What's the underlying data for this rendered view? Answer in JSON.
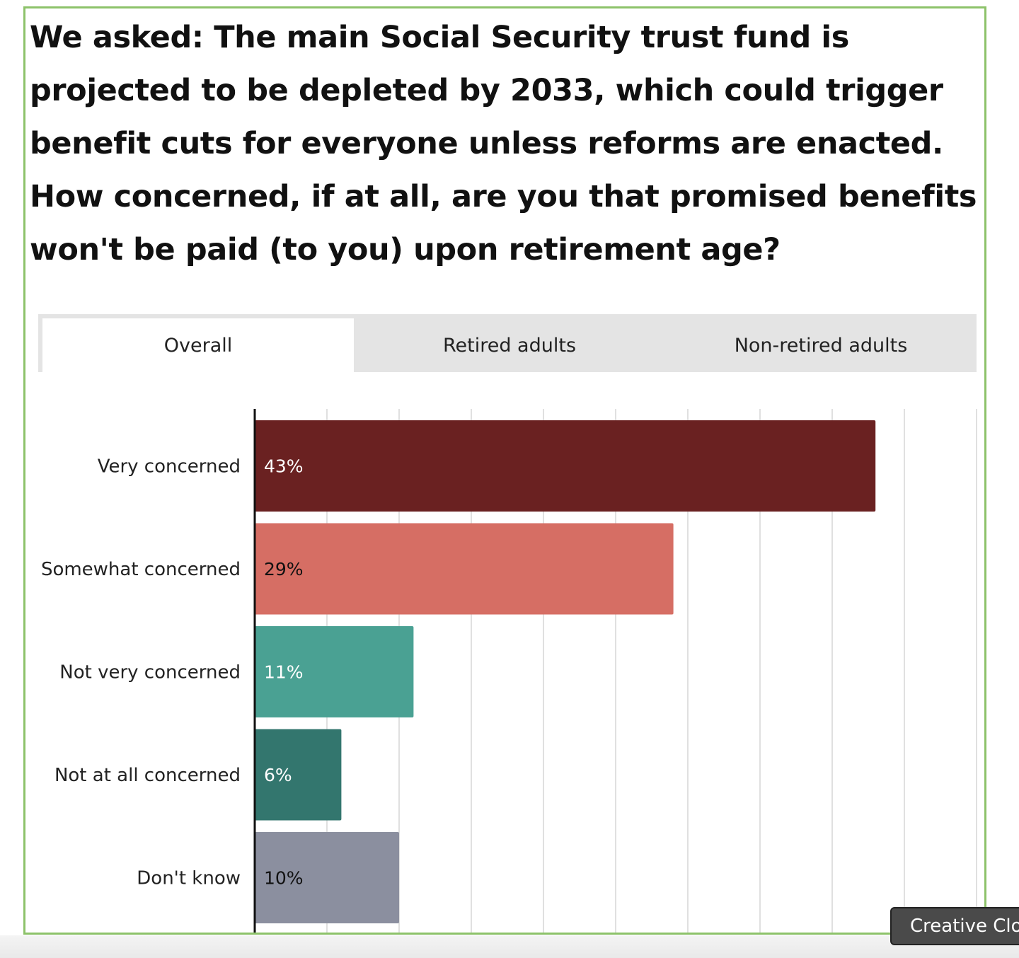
{
  "question": "We asked: The main Social Security trust fund is projected to be depleted by 2033, which could trigger benefit cuts for everyone unless reforms are enacted. How concerned, if at all, are you that promised benefits won't be paid (to you) upon retirement age?",
  "tabs": [
    {
      "label": "Overall",
      "active": true
    },
    {
      "label": "Retired adults",
      "active": false
    },
    {
      "label": "Non-retired adults",
      "active": false
    }
  ],
  "chart_data": {
    "type": "bar",
    "orientation": "horizontal",
    "categories": [
      "Very concerned",
      "Somewhat concerned",
      "Not very concerned",
      "Not at all concerned",
      "Don't know"
    ],
    "values": [
      43,
      29,
      11,
      6,
      10
    ],
    "value_labels": [
      "43%",
      "29%",
      "11%",
      "6%",
      "10%"
    ],
    "colors": [
      "#6a2121",
      "#d66e64",
      "#4aa193",
      "#33766e",
      "#8b8f9f"
    ],
    "label_colors": [
      "#ffffff",
      "#111111",
      "#ffffff",
      "#ffffff",
      "#111111"
    ],
    "xlim": [
      0,
      50
    ],
    "grid": true
  },
  "badge": {
    "label": "Creative Clo"
  }
}
